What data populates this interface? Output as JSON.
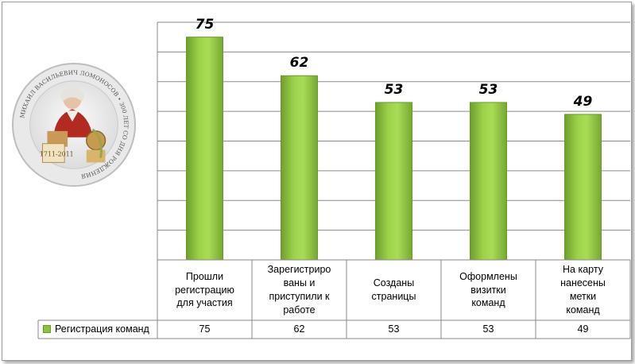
{
  "chart_data": {
    "type": "bar",
    "categories": [
      "Прошли регистрацию для участия",
      "Зарегистриро ваны и приступили  к работе",
      "Созданы страницы",
      "Оформлены визитки команд",
      "На карту нанесены метки команд"
    ],
    "category_lines": [
      [
        "Прошли",
        "регистрацию",
        "для участия"
      ],
      [
        "Зарегистриро",
        "ваны и",
        "приступили  к",
        "работе"
      ],
      [
        "Созданы",
        "страницы"
      ],
      [
        "Оформлены",
        "визитки",
        "команд"
      ],
      [
        "На карту",
        "нанесены",
        "метки",
        "команд"
      ]
    ],
    "series": [
      {
        "name": "Регистрация команд",
        "values": [
          75,
          62,
          53,
          53,
          49
        ],
        "color": "#8ac43d"
      }
    ],
    "ylim": [
      0,
      80
    ],
    "grid": true,
    "data_table": true,
    "legend_in_table": true
  },
  "medallion": {
    "icon": "lomonosov-portrait-medallion",
    "text": "МИХАИЛ ВАСИЛЬЕВИЧ ЛОМОНОСОВ • 300 ЛЕТ СО ДНЯ РОЖДЕНИЯ",
    "years": "1711-2011"
  }
}
